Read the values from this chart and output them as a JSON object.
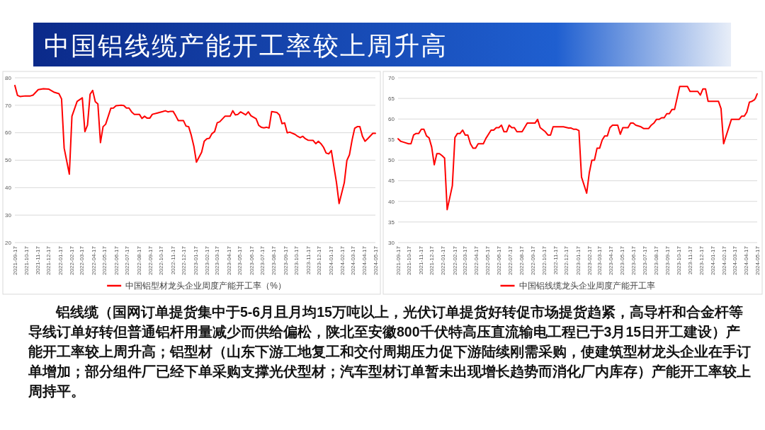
{
  "chart_data": [
    {
      "type": "other",
      "title": "中国铝线缆产能开工率较上周升高",
      "annotations": [
        "铝线缆（国网订单提货集中于5-6月且月均15万吨以上，光伏订单提货好转促市场提货趋紧，高导杆和合金杆等导线订单好转但普通铝杆用量减少而供给偏松，陕北至安徽800千伏特高压直流输电工程已于3月15日开工建设）产能开工率较上周升高；铝型材（山东下游工地复工和交付周期压力促下游陆续刚需采购，使建筑型材龙头企业在手订单增加；部分组件厂已经下单采购支撑光伏型材；汽车型材订单暂未出现增长趋势而消化厂内库存）产能开工率较上周持平。"
      ]
    },
    {
      "type": "line",
      "legend": "bottom",
      "grid": "y",
      "xlim": [
        "2021-09-17",
        "2024-05-17"
      ],
      "xticks": [
        "2021-09-17",
        "2021-10-17",
        "2021-11-17",
        "2021-12-17",
        "2022-01-17",
        "2022-02-17",
        "2022-03-17",
        "2022-04-17",
        "2022-05-17",
        "2022-06-17",
        "2022-07-17",
        "2022-08-17",
        "2022-09-17",
        "2022-10-17",
        "2022-11-17",
        "2022-12-17",
        "2023-01-17",
        "2023-02-17",
        "2023-03-17",
        "2023-04-17",
        "2023-05-17",
        "2023-06-17",
        "2023-07-17",
        "2023-08-17",
        "2023-09-17",
        "2023-10-17",
        "2023-11-17",
        "2023-12-17",
        "2024-01-17",
        "2024-02-17",
        "2024-03-17",
        "2024-04-17",
        "2024-05-17"
      ],
      "ylim": [
        20,
        80
      ],
      "yticks": [
        20,
        30,
        40,
        50,
        60,
        70,
        80
      ],
      "series": [
        {
          "name": "中国铝型材龙头企业周度产能开工率（%）",
          "color": "#ff0000",
          "x": [
            "2021-09-17",
            "2021-09-24",
            "2021-10-01",
            "2021-10-15",
            "2021-10-29",
            "2021-11-05",
            "2021-11-19",
            "2021-12-03",
            "2021-12-17",
            "2021-12-31",
            "2022-01-14",
            "2022-01-21",
            "2022-01-28",
            "2022-02-11",
            "2022-02-18",
            "2022-03-04",
            "2022-03-18",
            "2022-03-25",
            "2022-04-01",
            "2022-04-08",
            "2022-04-15",
            "2022-04-22",
            "2022-04-29",
            "2022-05-06",
            "2022-05-13",
            "2022-05-20",
            "2022-06-03",
            "2022-06-10",
            "2022-06-17",
            "2022-07-01",
            "2022-07-08",
            "2022-07-15",
            "2022-07-22",
            "2022-07-29",
            "2022-08-05",
            "2022-08-19",
            "2022-08-26",
            "2022-09-02",
            "2022-09-09",
            "2022-09-16",
            "2022-09-23",
            "2022-10-07",
            "2022-10-21",
            "2022-10-28",
            "2022-11-04",
            "2022-11-11",
            "2022-11-18",
            "2022-11-25",
            "2022-12-02",
            "2022-12-16",
            "2022-12-23",
            "2022-12-30",
            "2023-01-06",
            "2023-01-13",
            "2023-01-20",
            "2023-02-03",
            "2023-02-10",
            "2023-02-17",
            "2023-02-24",
            "2023-03-03",
            "2023-03-10",
            "2023-03-17",
            "2023-03-24",
            "2023-04-07",
            "2023-04-21",
            "2023-04-28",
            "2023-05-05",
            "2023-05-12",
            "2023-05-19",
            "2023-06-02",
            "2023-06-09",
            "2023-06-16",
            "2023-06-30",
            "2023-07-07",
            "2023-07-14",
            "2023-07-21",
            "2023-07-28",
            "2023-08-04",
            "2023-08-11",
            "2023-08-25",
            "2023-09-01",
            "2023-09-08",
            "2023-09-15",
            "2023-09-22",
            "2023-09-29",
            "2023-10-13",
            "2023-10-20",
            "2023-10-27",
            "2023-11-03",
            "2023-11-10",
            "2023-11-17",
            "2023-12-01",
            "2023-12-08",
            "2023-12-15",
            "2023-12-22",
            "2023-12-29",
            "2024-01-05",
            "2024-01-12",
            "2024-01-19",
            "2024-02-02",
            "2024-02-09",
            "2024-02-23",
            "2024-03-01",
            "2024-03-08",
            "2024-03-15",
            "2024-03-22",
            "2024-03-29",
            "2024-04-05",
            "2024-04-12",
            "2024-04-19",
            "2024-04-26",
            "2024-05-10",
            "2024-05-17"
          ],
          "values": [
            77.2,
            73.6,
            73.2,
            73.4,
            73.4,
            73.7,
            75.7,
            76.0,
            75.9,
            74.8,
            74.2,
            72.3,
            54.4,
            44.9,
            66.0,
            71.4,
            72.7,
            60.4,
            62.8,
            74.0,
            75.4,
            71.3,
            70.5,
            56.4,
            62.2,
            63.1,
            68.9,
            69.0,
            69.8,
            70.0,
            69.9,
            69.0,
            69.0,
            67.6,
            66.7,
            66.7,
            65.2,
            66.0,
            65.3,
            65.3,
            66.7,
            67.2,
            67.7,
            68.0,
            67.6,
            67.8,
            67.8,
            66.2,
            64.4,
            64.4,
            62.4,
            62.2,
            59.1,
            55.1,
            49.3,
            52.9,
            56.9,
            57.8,
            58.0,
            59.7,
            60.4,
            63.6,
            64.0,
            66.0,
            66.0,
            68.0,
            66.5,
            66.7,
            67.6,
            66.5,
            67.6,
            66.2,
            65.1,
            62.7,
            62.0,
            61.8,
            62.0,
            61.7,
            67.7,
            67.4,
            66.5,
            63.3,
            63.6,
            60.0,
            60.2,
            59.4,
            58.7,
            58.2,
            58.7,
            57.8,
            57.3,
            57.2,
            56.0,
            56.9,
            56.0,
            54.7,
            52.6,
            52.3,
            53.5,
            41.8,
            34.2,
            41.8,
            49.9,
            52.0,
            57.3,
            61.6,
            62.2,
            62.2,
            58.7,
            56.9,
            57.8,
            59.8,
            59.8
          ]
        }
      ]
    },
    {
      "type": "line",
      "legend": "bottom",
      "grid": "y",
      "xlim": [
        "2021-09-17",
        "2024-05-17"
      ],
      "xticks": [
        "2021-09-17",
        "2021-10-17",
        "2021-11-17",
        "2021-12-17",
        "2022-01-17",
        "2022-02-17",
        "2022-03-17",
        "2022-04-17",
        "2022-05-17",
        "2022-06-17",
        "2022-07-17",
        "2022-08-17",
        "2022-09-17",
        "2022-10-17",
        "2022-11-17",
        "2022-12-17",
        "2023-01-17",
        "2023-02-17",
        "2023-03-17",
        "2023-04-17",
        "2023-05-17",
        "2023-06-17",
        "2023-07-17",
        "2023-08-17",
        "2023-09-17",
        "2023-10-17",
        "2023-11-17",
        "2023-12-17",
        "2024-01-17",
        "2024-02-17",
        "2024-03-17",
        "2024-04-17",
        "2024-05-17"
      ],
      "ylim": [
        30,
        70
      ],
      "yticks": [
        30,
        35,
        40,
        45,
        50,
        55,
        60,
        65,
        70
      ],
      "series": [
        {
          "name": "中国铝线缆龙头企业周度产能开工率",
          "color": "#ff0000",
          "x": [
            "2021-09-17",
            "2021-09-24",
            "2021-10-01",
            "2021-10-15",
            "2021-10-22",
            "2021-10-29",
            "2021-11-05",
            "2021-11-12",
            "2021-11-19",
            "2021-11-26",
            "2021-12-03",
            "2021-12-10",
            "2021-12-17",
            "2021-12-24",
            "2021-12-31",
            "2022-01-07",
            "2022-01-14",
            "2022-01-21",
            "2022-01-28",
            "2022-02-11",
            "2022-02-18",
            "2022-02-25",
            "2022-03-04",
            "2022-03-11",
            "2022-03-18",
            "2022-03-25",
            "2022-04-01",
            "2022-04-08",
            "2022-04-15",
            "2022-04-22",
            "2022-05-06",
            "2022-05-13",
            "2022-05-27",
            "2022-06-03",
            "2022-06-10",
            "2022-06-17",
            "2022-06-24",
            "2022-07-01",
            "2022-07-08",
            "2022-07-15",
            "2022-07-22",
            "2022-07-29",
            "2022-08-05",
            "2022-08-19",
            "2022-09-02",
            "2022-09-23",
            "2022-09-30",
            "2022-10-07",
            "2022-10-21",
            "2022-10-28",
            "2022-11-04",
            "2022-11-11",
            "2022-12-09",
            "2022-12-23",
            "2022-12-30",
            "2023-01-06",
            "2023-01-13",
            "2023-01-20",
            "2023-01-27",
            "2023-02-10",
            "2023-02-17",
            "2023-02-24",
            "2023-03-03",
            "2023-03-10",
            "2023-03-17",
            "2023-03-24",
            "2023-03-31",
            "2023-04-07",
            "2023-04-14",
            "2023-04-21",
            "2023-05-05",
            "2023-05-12",
            "2023-05-19",
            "2023-06-02",
            "2023-06-09",
            "2023-06-16",
            "2023-06-23",
            "2023-07-07",
            "2023-07-14",
            "2023-07-28",
            "2023-08-04",
            "2023-08-11",
            "2023-08-18",
            "2023-08-25",
            "2023-09-01",
            "2023-09-08",
            "2023-09-15",
            "2023-09-22",
            "2023-09-29",
            "2023-10-06",
            "2023-10-20",
            "2023-11-10",
            "2023-11-17",
            "2023-12-08",
            "2023-12-15",
            "2023-12-22",
            "2023-12-29",
            "2024-01-05",
            "2024-02-02",
            "2024-02-09",
            "2024-02-16",
            "2024-03-08",
            "2024-03-29",
            "2024-04-05",
            "2024-04-12",
            "2024-04-19",
            "2024-04-26",
            "2024-05-03",
            "2024-05-10",
            "2024-05-13",
            "2024-05-17"
          ],
          "values": [
            55.2,
            54.6,
            54.4,
            54.0,
            54.0,
            56.1,
            56.5,
            56.5,
            57.5,
            57.5,
            55.9,
            55.4,
            53.2,
            48.9,
            51.6,
            51.6,
            51.1,
            50.5,
            38.0,
            43.8,
            55.5,
            56.5,
            56.5,
            57.3,
            56.1,
            56.1,
            54.0,
            52.9,
            52.9,
            54.0,
            54.0,
            55.3,
            57.3,
            57.3,
            57.9,
            57.9,
            58.5,
            56.9,
            56.9,
            58.5,
            57.9,
            57.9,
            56.9,
            56.9,
            59.0,
            59.0,
            59.9,
            57.9,
            56.9,
            56.1,
            56.1,
            58.1,
            58.1,
            57.8,
            57.8,
            57.5,
            57.5,
            57.2,
            45.9,
            42.0,
            46.9,
            50.0,
            50.0,
            52.9,
            52.9,
            54.9,
            55.9,
            55.9,
            57.9,
            58.5,
            58.5,
            56.3,
            57.9,
            57.9,
            59.0,
            59.0,
            58.5,
            58.1,
            57.7,
            57.7,
            58.5,
            59.0,
            59.9,
            59.9,
            60.3,
            60.3,
            61.3,
            61.3,
            62.3,
            62.3,
            67.9,
            67.9,
            66.7,
            66.7,
            65.8,
            67.3,
            67.3,
            64.3,
            64.3,
            62.5,
            54.0,
            59.9,
            59.9,
            60.7,
            60.7,
            61.7,
            64.1,
            64.3,
            64.7,
            65.2,
            66.1
          ]
        }
      ]
    }
  ]
}
